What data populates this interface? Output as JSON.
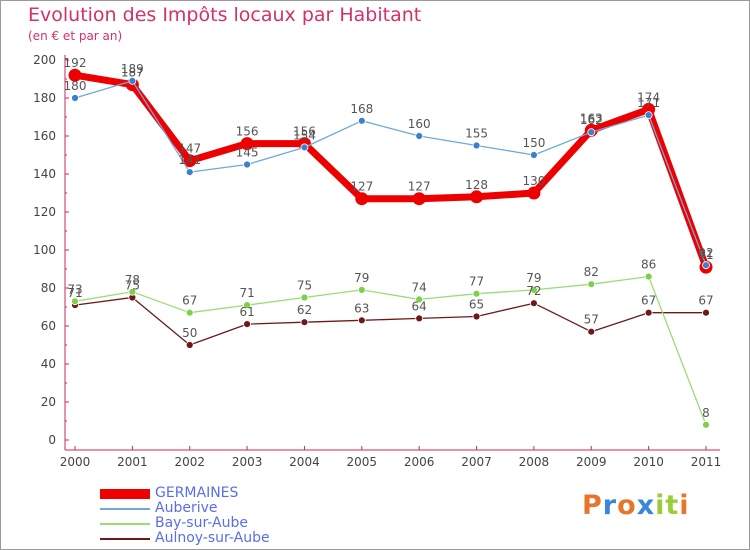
{
  "chart_data": {
    "type": "line",
    "title": "Evolution des Impôts locaux par Habitant",
    "subtitle": "(en € et par an)",
    "x": [
      "2000",
      "2001",
      "2002",
      "2003",
      "2004",
      "2005",
      "2006",
      "2007",
      "2008",
      "2009",
      "2010",
      "2011"
    ],
    "ylim": [
      0,
      200
    ],
    "yticks": [
      0,
      20,
      40,
      60,
      80,
      100,
      120,
      140,
      160,
      180,
      200
    ],
    "grid": false,
    "legend": "bottom-left",
    "series": [
      {
        "name": "GERMAINES",
        "color": "#ee0000",
        "values": [
          192,
          187,
          147,
          156,
          156,
          127,
          127,
          128,
          130,
          163,
          174,
          91
        ]
      },
      {
        "name": "Auberive",
        "color": "#6fa8dc",
        "values": [
          180,
          189,
          141,
          145,
          154,
          168,
          160,
          155,
          150,
          162,
          171,
          92
        ]
      },
      {
        "name": "Bay-sur-Aube",
        "color": "#99dd77",
        "values": [
          73,
          78,
          67,
          71,
          75,
          79,
          74,
          77,
          79,
          82,
          86,
          8
        ]
      },
      {
        "name": "Aulnoy-sur-Aube",
        "color": "#6b1a1a",
        "values": [
          71,
          75,
          50,
          61,
          62,
          63,
          64,
          65,
          72,
          57,
          67,
          67
        ]
      }
    ]
  },
  "logo": {
    "letters": [
      "P",
      "r",
      "o",
      "x",
      "i",
      "t",
      "i"
    ],
    "colors": [
      "#e8762a",
      "#3a86d8",
      "#e8762a",
      "#3a86d8",
      "#9bcc3c",
      "#9bcc3c",
      "#e8762a"
    ]
  }
}
